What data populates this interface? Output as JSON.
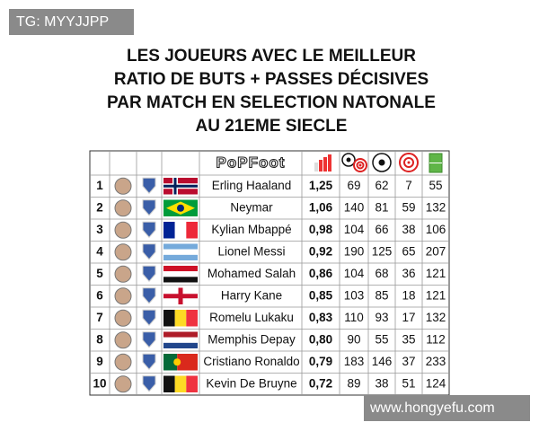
{
  "watermark_top": "TG: MYYJJPP",
  "title_lines": [
    "LES JOUEURS AVEC LE MEILLEUR",
    "RATIO DE BUTS + PASSES DÉCISIVES",
    "PAR MATCH EN SELECTION NATONALE",
    "AU 21EME SIECLE"
  ],
  "table": {
    "brand": "PoPFoot",
    "rows": [
      {
        "rank": 1,
        "name": "Erling Haaland",
        "ratio": "1,25",
        "stats": [
          69,
          62,
          7,
          55
        ]
      },
      {
        "rank": 2,
        "name": "Neymar",
        "ratio": "1,06",
        "stats": [
          140,
          81,
          59,
          132
        ]
      },
      {
        "rank": 3,
        "name": "Kylian Mbappé",
        "ratio": "0,98",
        "stats": [
          104,
          66,
          38,
          106
        ]
      },
      {
        "rank": 4,
        "name": "Lionel Messi",
        "ratio": "0,92",
        "stats": [
          190,
          125,
          65,
          207
        ]
      },
      {
        "rank": 5,
        "name": "Mohamed Salah",
        "ratio": "0,86",
        "stats": [
          104,
          68,
          36,
          121
        ]
      },
      {
        "rank": 6,
        "name": "Harry Kane",
        "ratio": "0,85",
        "stats": [
          103,
          85,
          18,
          121
        ]
      },
      {
        "rank": 7,
        "name": "Romelu Lukaku",
        "ratio": "0,83",
        "stats": [
          110,
          93,
          17,
          132
        ]
      },
      {
        "rank": 8,
        "name": "Memphis Depay",
        "ratio": "0,80",
        "stats": [
          90,
          55,
          35,
          112
        ]
      },
      {
        "rank": 9,
        "name": "Cristiano Ronaldo",
        "ratio": "0,79",
        "stats": [
          183,
          146,
          37,
          233
        ]
      },
      {
        "rank": 10,
        "name": "Kevin De Bruyne",
        "ratio": "0,72",
        "stats": [
          89,
          38,
          51,
          124
        ]
      }
    ]
  },
  "watermark_bottom": "www.hongyefu.com"
}
